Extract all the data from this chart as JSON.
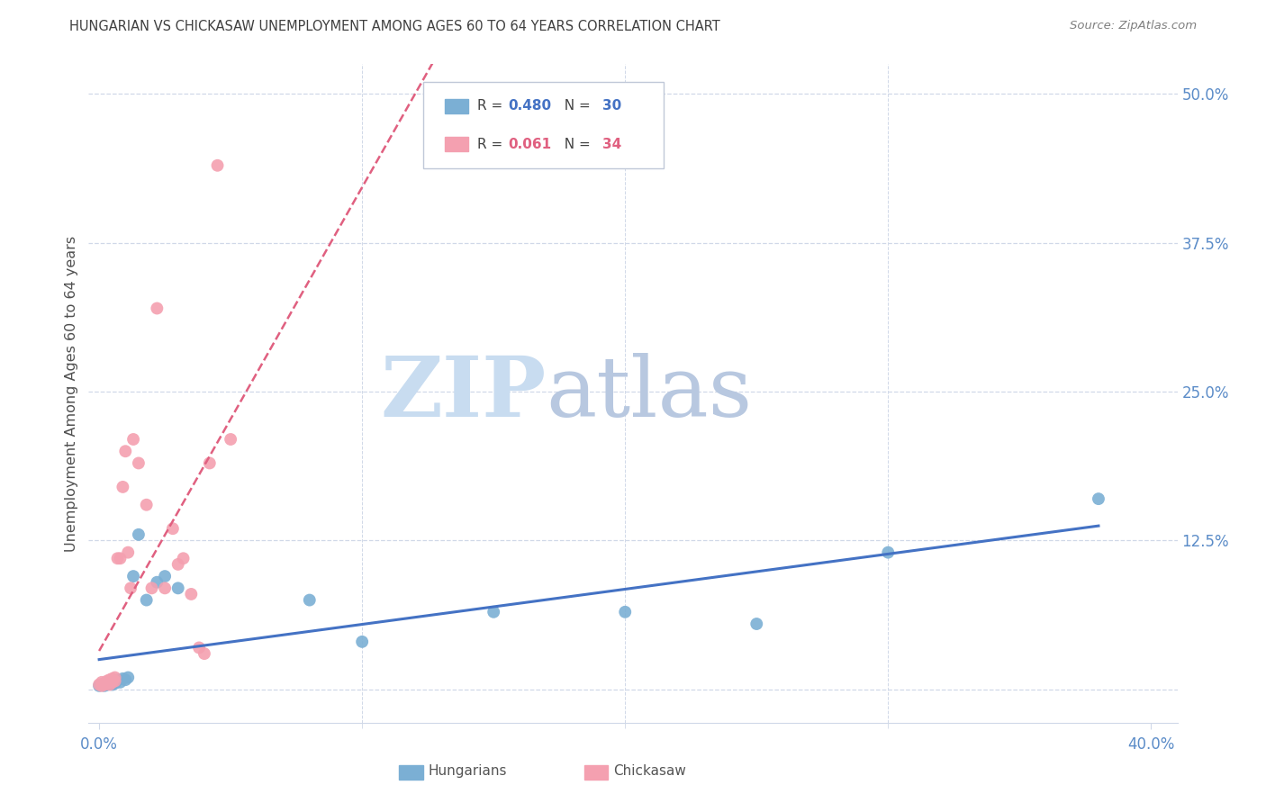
{
  "title": "HUNGARIAN VS CHICKASAW UNEMPLOYMENT AMONG AGES 60 TO 64 YEARS CORRELATION CHART",
  "source": "Source: ZipAtlas.com",
  "ylabel": "Unemployment Among Ages 60 to 64 years",
  "xlim": [
    -0.004,
    0.41
  ],
  "ylim": [
    -0.028,
    0.525
  ],
  "xlabel_ticks": [
    "0.0%",
    "40.0%"
  ],
  "xlabel_vals": [
    0.0,
    0.4
  ],
  "xlabel_minor": [
    0.1,
    0.2,
    0.3
  ],
  "ylabel_ticks": [
    "12.5%",
    "25.0%",
    "37.5%",
    "50.0%"
  ],
  "ylabel_vals": [
    0.125,
    0.25,
    0.375,
    0.5
  ],
  "ylabel_grid": [
    0.0,
    0.125,
    0.25,
    0.375,
    0.5
  ],
  "hungarian_R": 0.48,
  "hungarian_N": 30,
  "chickasaw_R": 0.061,
  "chickasaw_N": 34,
  "hungarian_color": "#7BAFD4",
  "chickasaw_color": "#F4A0B0",
  "hungarian_line_color": "#4472C4",
  "chickasaw_line_color": "#E06080",
  "watermark_zip_color": "#C8DCF0",
  "watermark_atlas_color": "#B8C8E0",
  "background_color": "#FFFFFF",
  "grid_color": "#D0D8E8",
  "tick_label_color": "#5B8CC8",
  "title_color": "#404040",
  "source_color": "#808080",
  "ylabel_color": "#505050",
  "legend_edge_color": "#C0C8D8",
  "hungarian_x": [
    0.0,
    0.001,
    0.002,
    0.002,
    0.003,
    0.003,
    0.004,
    0.004,
    0.005,
    0.005,
    0.006,
    0.006,
    0.007,
    0.008,
    0.009,
    0.01,
    0.011,
    0.013,
    0.015,
    0.018,
    0.022,
    0.025,
    0.03,
    0.08,
    0.1,
    0.15,
    0.2,
    0.25,
    0.3,
    0.38
  ],
  "hungarian_y": [
    0.003,
    0.004,
    0.005,
    0.003,
    0.006,
    0.004,
    0.007,
    0.005,
    0.006,
    0.004,
    0.007,
    0.005,
    0.008,
    0.006,
    0.009,
    0.008,
    0.01,
    0.095,
    0.13,
    0.075,
    0.09,
    0.095,
    0.085,
    0.075,
    0.04,
    0.065,
    0.065,
    0.055,
    0.115,
    0.16
  ],
  "chickasaw_x": [
    0.0,
    0.001,
    0.001,
    0.002,
    0.002,
    0.003,
    0.003,
    0.004,
    0.004,
    0.005,
    0.005,
    0.006,
    0.006,
    0.007,
    0.008,
    0.009,
    0.01,
    0.011,
    0.012,
    0.013,
    0.015,
    0.018,
    0.02,
    0.022,
    0.025,
    0.028,
    0.03,
    0.032,
    0.035,
    0.038,
    0.04,
    0.042,
    0.045,
    0.05
  ],
  "chickasaw_y": [
    0.004,
    0.006,
    0.003,
    0.005,
    0.004,
    0.007,
    0.005,
    0.008,
    0.004,
    0.009,
    0.006,
    0.01,
    0.007,
    0.11,
    0.11,
    0.17,
    0.2,
    0.115,
    0.085,
    0.21,
    0.19,
    0.155,
    0.085,
    0.32,
    0.085,
    0.135,
    0.105,
    0.11,
    0.08,
    0.035,
    0.03,
    0.19,
    0.44,
    0.21
  ]
}
